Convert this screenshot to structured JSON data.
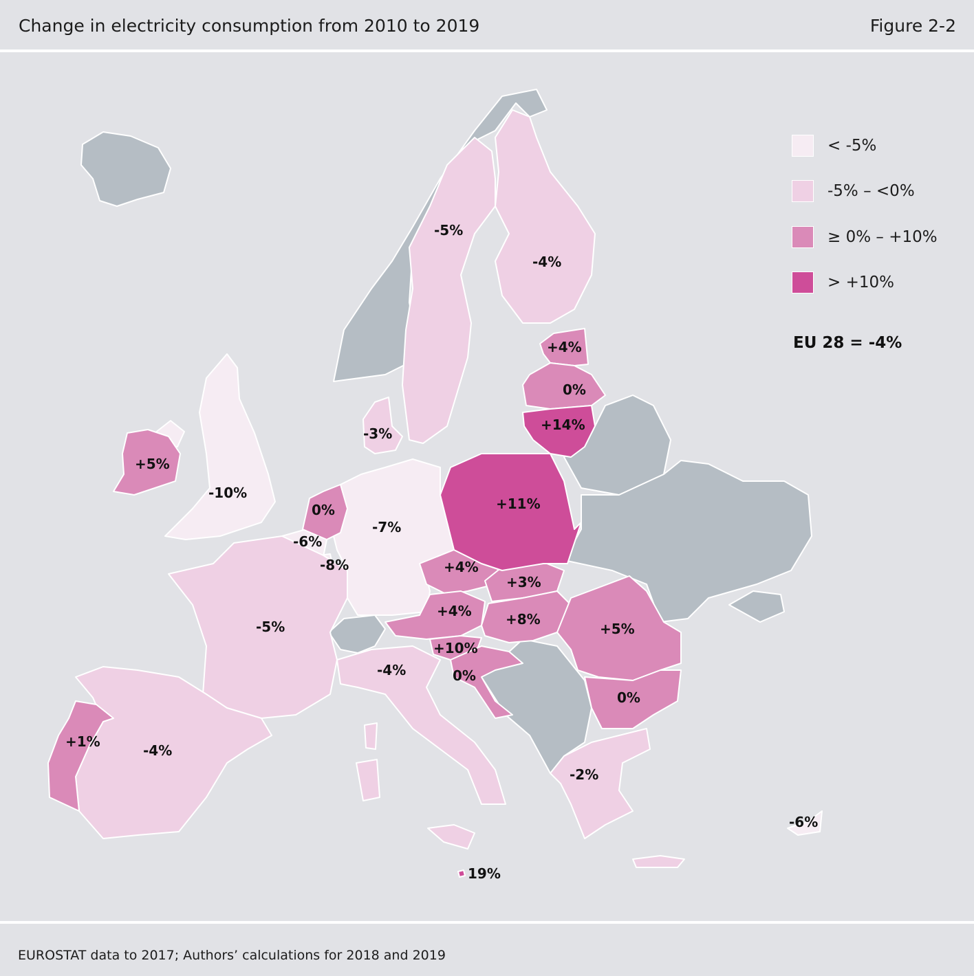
{
  "header": {
    "title": "Change in electricity consumption from 2010 to 2019",
    "figure": "Figure 2-2"
  },
  "footer": {
    "source": "EUROSTAT data to 2017; Authors’ calculations for 2018 and 2019"
  },
  "colors": {
    "background": "#e1e2e6",
    "non_eu": "#b5bdc4",
    "lt_minus5": "#f6ecf3",
    "minus5_to_0": "#efd0e4",
    "0_to_10": "#da8ab8",
    "gt_10": "#ce4d99"
  },
  "legend": {
    "items": [
      {
        "label": "< -5%",
        "color": "#f6ecf3"
      },
      {
        "label": "-5% – <0%",
        "color": "#efd0e4"
      },
      {
        "label": "≥ 0% – +10%",
        "color": "#da8ab8"
      },
      {
        "label": "> +10%",
        "color": "#ce4d99"
      }
    ],
    "eu_total": "EU 28 = -4%"
  },
  "map": {
    "labels": {
      "sweden": "-5%",
      "finland": "-4%",
      "estonia": "+4%",
      "latvia": "0%",
      "lithuania": "+14%",
      "denmark": "-3%",
      "ireland": "+5%",
      "uk": "-10%",
      "netherlands": "0%",
      "belgium": "-6%",
      "luxembourg": "-8%",
      "germany": "-7%",
      "poland": "+11%",
      "czech": "+4%",
      "slovakia": "+3%",
      "austria": "+4%",
      "hungary": "+8%",
      "romania": "+5%",
      "slovenia": "+10%",
      "croatia": "0%",
      "bulgaria": "0%",
      "france": "-5%",
      "italy": "-4%",
      "spain": "-4%",
      "portugal": "+1%",
      "greece": "-2%",
      "cyprus": "-6%",
      "malta": "19%"
    }
  }
}
